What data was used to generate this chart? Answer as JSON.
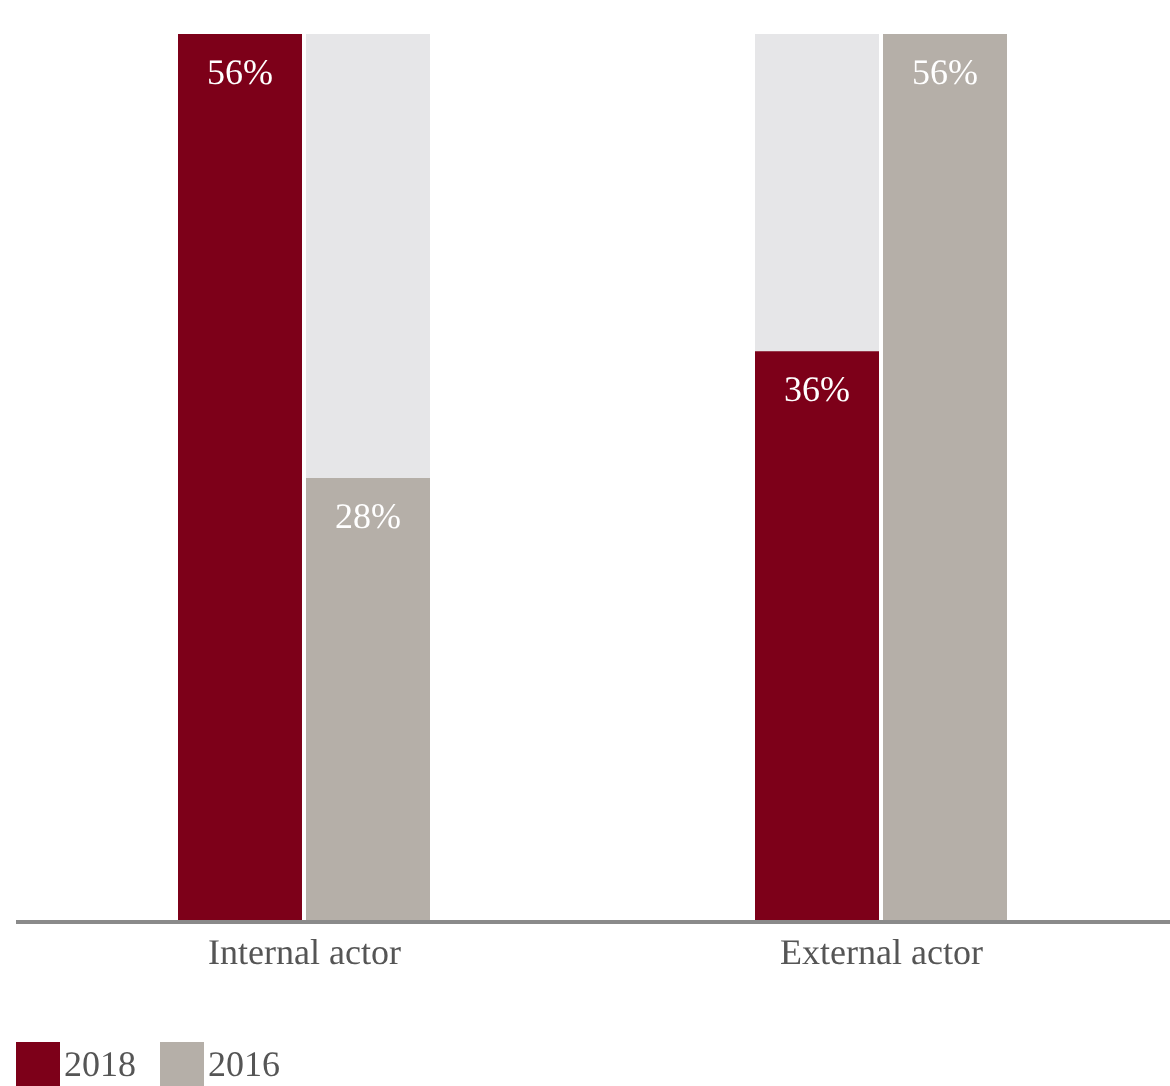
{
  "chart_data": {
    "type": "bar",
    "categories": [
      "Internal actor",
      "External actor"
    ],
    "series": [
      {
        "name": "2018",
        "color": "#7d0019",
        "values": [
          56,
          36
        ],
        "value_labels": [
          "56%",
          "36%"
        ]
      },
      {
        "name": "2016",
        "color": "#b5afa8",
        "values": [
          28,
          56
        ],
        "value_labels": [
          "28%",
          "56%"
        ]
      }
    ],
    "legend": "bottom left"
  }
}
